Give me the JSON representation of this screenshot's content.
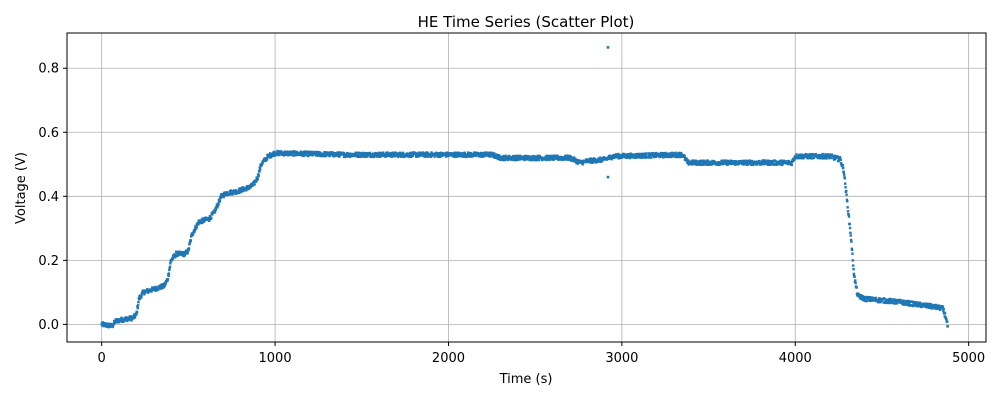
{
  "chart_data": {
    "type": "scatter",
    "title": "HE Time Series (Scatter Plot)",
    "xlabel": "Time (s)",
    "ylabel": "Voltage (V)",
    "xlim": [
      -200,
      5100
    ],
    "ylim": [
      -0.055,
      0.91
    ],
    "xticks": [
      0,
      1000,
      2000,
      3000,
      4000,
      5000
    ],
    "xtick_labels": [
      "0",
      "1000",
      "2000",
      "3000",
      "4000",
      "5000"
    ],
    "yticks": [
      0.0,
      0.2,
      0.4,
      0.6,
      0.8
    ],
    "ytick_labels": [
      "0.0",
      "0.2",
      "0.4",
      "0.6",
      "0.8"
    ],
    "grid": true,
    "series_color": "#1f77b4",
    "trend": [
      [
        0,
        0.0
      ],
      [
        60,
        -0.005
      ],
      [
        80,
        0.01
      ],
      [
        120,
        0.015
      ],
      [
        180,
        0.02
      ],
      [
        200,
        0.03
      ],
      [
        215,
        0.08
      ],
      [
        240,
        0.1
      ],
      [
        300,
        0.11
      ],
      [
        360,
        0.12
      ],
      [
        380,
        0.14
      ],
      [
        400,
        0.2
      ],
      [
        430,
        0.22
      ],
      [
        480,
        0.22
      ],
      [
        500,
        0.23
      ],
      [
        520,
        0.28
      ],
      [
        560,
        0.32
      ],
      [
        620,
        0.33
      ],
      [
        650,
        0.35
      ],
      [
        690,
        0.4
      ],
      [
        720,
        0.41
      ],
      [
        780,
        0.415
      ],
      [
        860,
        0.43
      ],
      [
        880,
        0.44
      ],
      [
        900,
        0.46
      ],
      [
        920,
        0.5
      ],
      [
        960,
        0.525
      ],
      [
        1000,
        0.535
      ],
      [
        1400,
        0.53
      ],
      [
        2250,
        0.53
      ],
      [
        2300,
        0.52
      ],
      [
        2500,
        0.52
      ],
      [
        2700,
        0.52
      ],
      [
        2760,
        0.505
      ],
      [
        2800,
        0.51
      ],
      [
        2900,
        0.515
      ],
      [
        2950,
        0.525
      ],
      [
        3350,
        0.53
      ],
      [
        3380,
        0.505
      ],
      [
        3980,
        0.505
      ],
      [
        4000,
        0.525
      ],
      [
        4200,
        0.525
      ],
      [
        4260,
        0.515
      ],
      [
        4280,
        0.48
      ],
      [
        4300,
        0.38
      ],
      [
        4320,
        0.28
      ],
      [
        4340,
        0.15
      ],
      [
        4360,
        0.09
      ],
      [
        4400,
        0.08
      ],
      [
        4600,
        0.07
      ],
      [
        4800,
        0.055
      ],
      [
        4850,
        0.05
      ],
      [
        4870,
        0.02
      ],
      [
        4880,
        -0.01
      ]
    ],
    "outliers": [
      [
        2920,
        0.865
      ],
      [
        2920,
        0.46
      ]
    ]
  }
}
